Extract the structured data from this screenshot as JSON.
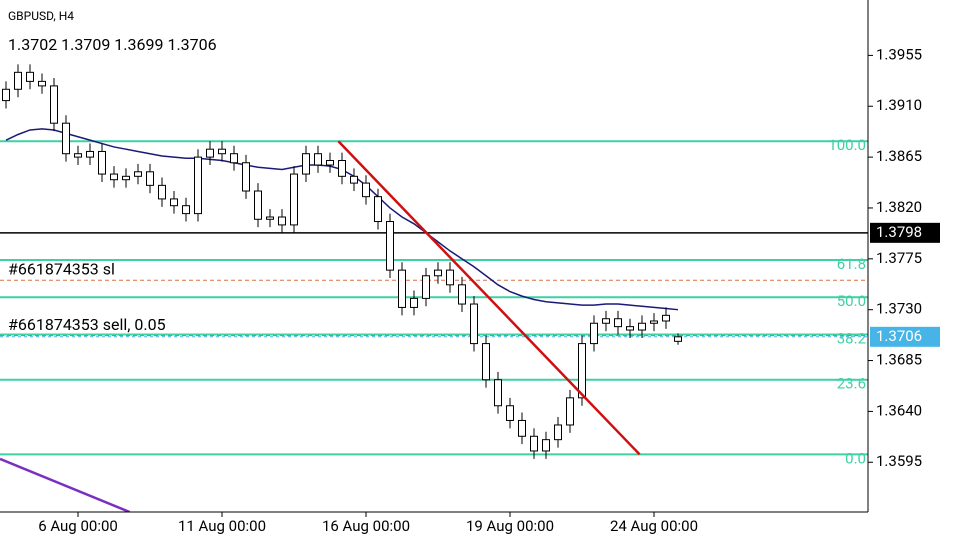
{
  "chart_data": {
    "type": "candlestick",
    "symbol": "GBPUSD, H4",
    "ohlc_text": "1.3702 1.3709 1.3699 1.3706",
    "categories": [
      null,
      null,
      null,
      null,
      null,
      null,
      "6 Aug 00:00",
      null,
      null,
      null,
      null,
      null,
      null,
      null,
      null,
      null,
      null,
      null,
      "11 Aug 00:00",
      null,
      null,
      null,
      null,
      null,
      null,
      null,
      null,
      null,
      null,
      null,
      "16 Aug 00:00",
      null,
      null,
      null,
      null,
      null,
      null,
      null,
      null,
      null,
      null,
      null,
      "19 Aug 00:00",
      null,
      null,
      null,
      null,
      null,
      null,
      null,
      null,
      null,
      null,
      null,
      "24 Aug 00:00",
      null,
      null
    ],
    "open": [
      1.3915,
      1.3925,
      1.394,
      1.3932,
      1.3928,
      1.3895,
      1.3868,
      1.3865,
      1.387,
      1.385,
      1.3845,
      1.3848,
      1.3852,
      1.384,
      1.3828,
      1.3822,
      1.3815,
      1.3865,
      1.3872,
      1.3868,
      1.386,
      1.3835,
      1.381,
      1.3812,
      1.3805,
      1.385,
      1.3868,
      1.3858,
      1.3862,
      1.3848,
      1.3842,
      1.383,
      1.3808,
      1.3765,
      1.3732,
      1.374,
      1.376,
      1.3765,
      1.3752,
      1.3735,
      1.37,
      1.3668,
      1.3645,
      1.3632,
      1.3618,
      1.3605,
      1.3615,
      1.3628,
      1.3652,
      1.37,
      1.3718,
      1.3722,
      1.3715,
      1.3712,
      1.3718,
      1.372,
      1.3702
    ],
    "high": [
      1.3932,
      1.3947,
      1.3947,
      1.3939,
      1.3935,
      1.3902,
      1.3875,
      1.3877,
      1.3877,
      1.3857,
      1.3855,
      1.3859,
      1.3859,
      1.3847,
      1.3835,
      1.3829,
      1.3872,
      1.3879,
      1.3879,
      1.3875,
      1.3867,
      1.3842,
      1.3819,
      1.3819,
      1.3857,
      1.3875,
      1.3875,
      1.3869,
      1.3869,
      1.3855,
      1.3849,
      1.3837,
      1.3815,
      1.3772,
      1.3747,
      1.3767,
      1.3772,
      1.3772,
      1.3759,
      1.3742,
      1.3707,
      1.3675,
      1.3652,
      1.3639,
      1.3625,
      1.3622,
      1.3635,
      1.3659,
      1.3707,
      1.3725,
      1.3729,
      1.3729,
      1.3722,
      1.3725,
      1.3727,
      1.3732,
      1.3709
    ],
    "low": [
      1.3908,
      1.3918,
      1.3925,
      1.3921,
      1.3888,
      1.3861,
      1.3858,
      1.3858,
      1.3843,
      1.3838,
      1.3838,
      1.3841,
      1.3833,
      1.3821,
      1.3815,
      1.3808,
      1.3808,
      1.3858,
      1.3861,
      1.3853,
      1.3828,
      1.3803,
      1.3803,
      1.3798,
      1.3798,
      1.3843,
      1.3851,
      1.3851,
      1.3841,
      1.3835,
      1.3823,
      1.3801,
      1.3758,
      1.3725,
      1.3725,
      1.3733,
      1.3753,
      1.3745,
      1.3728,
      1.3693,
      1.3661,
      1.3638,
      1.3625,
      1.3611,
      1.3598,
      1.3598,
      1.3608,
      1.3621,
      1.3645,
      1.3693,
      1.3711,
      1.3708,
      1.3705,
      1.3705,
      1.3711,
      1.3713,
      1.3699
    ],
    "close": [
      1.3925,
      1.394,
      1.3932,
      1.3928,
      1.3895,
      1.3868,
      1.3865,
      1.387,
      1.385,
      1.3845,
      1.3848,
      1.3852,
      1.384,
      1.3828,
      1.3822,
      1.3815,
      1.3865,
      1.3872,
      1.3868,
      1.386,
      1.3835,
      1.381,
      1.3812,
      1.3805,
      1.385,
      1.3868,
      1.3858,
      1.3862,
      1.3848,
      1.3842,
      1.383,
      1.3808,
      1.3765,
      1.3732,
      1.374,
      1.376,
      1.3765,
      1.3752,
      1.3735,
      1.37,
      1.3668,
      1.3645,
      1.3632,
      1.3618,
      1.3605,
      1.3615,
      1.3628,
      1.3652,
      1.37,
      1.3718,
      1.3722,
      1.3715,
      1.3712,
      1.3718,
      1.372,
      1.3725,
      1.3706
    ],
    "candle_color": "#000000",
    "moving_average": {
      "color": "#1a1a78",
      "values": [
        1.388,
        1.3885,
        1.3889,
        1.389,
        1.3889,
        1.3886,
        1.3883,
        1.388,
        1.3877,
        1.3874,
        1.3872,
        1.387,
        1.3868,
        1.3866,
        1.3865,
        1.3864,
        1.3864,
        1.3863,
        1.3862,
        1.386,
        1.3858,
        1.3856,
        1.3855,
        1.3854,
        1.3856,
        1.3858,
        1.3858,
        1.3857,
        1.3854,
        1.3848,
        1.384,
        1.383,
        1.382,
        1.3812,
        1.3806,
        1.3798,
        1.379,
        1.3782,
        1.3775,
        1.3768,
        1.376,
        1.3752,
        1.3746,
        1.3742,
        1.3739,
        1.3737,
        1.3736,
        1.3735,
        1.3734,
        1.3734,
        1.3735,
        1.3735,
        1.3734,
        1.3733,
        1.3732,
        1.3731,
        1.373
      ]
    },
    "ylim": [
      1.3551,
      1.4004
    ],
    "yticks": [
      1.3955,
      {
        "value": 1.391,
        "label": "1.3910"
      },
      1.3865,
      {
        "value": 1.382,
        "label": "1.3820"
      },
      1.3775,
      {
        "value": 1.373,
        "label": "1.3730"
      },
      1.3685,
      {
        "value": 1.364,
        "label": "1.3640"
      },
      1.3595
    ],
    "fib_color": "#3fd0a3",
    "fib_levels": [
      {
        "label": "100.0",
        "price": 1.3879
      },
      {
        "label": "61.8",
        "price": 1.3774
      },
      {
        "label": "50.0",
        "price": 1.3741
      },
      {
        "label": "38.2",
        "price": 1.3708
      },
      {
        "label": "23.6",
        "price": 1.3668
      },
      {
        "label": "0.0",
        "price": 1.3602
      }
    ],
    "trend_line": {
      "color": "#d01010",
      "from": [
        27.7,
        1.3879
      ],
      "to": [
        52.8,
        1.3602
      ]
    },
    "extra_line": {
      "color": "#7b2fc0",
      "from": [
        -0.5,
        1.3598
      ],
      "to": [
        10.3,
        1.3551
      ]
    },
    "price_line": {
      "value": 1.3798,
      "color": "#000000"
    },
    "current_price": {
      "value": 1.3706,
      "color": "#46b4e6"
    },
    "orders": [
      {
        "label": "#661874353 sl",
        "price": 1.3756,
        "color": "#d8704a"
      },
      {
        "label": "#661874353 sell, 0.05",
        "price": 1.3707,
        "color": "#2fb894"
      }
    ]
  }
}
